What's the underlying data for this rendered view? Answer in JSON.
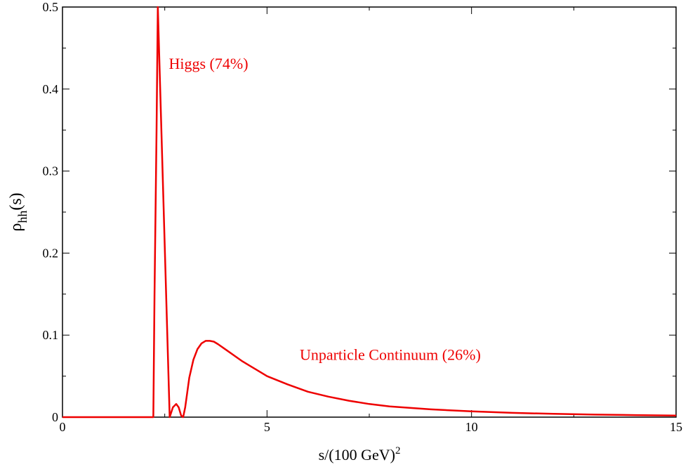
{
  "chart_data": {
    "type": "line",
    "title": "",
    "xlabel": "s/(100 GeV)",
    "xlabel_superscript": "2",
    "ylabel": "ρ",
    "ylabel_subscript": "hh",
    "ylabel_suffix": "(s)",
    "xlim": [
      0,
      15
    ],
    "ylim": [
      0,
      0.5
    ],
    "x_ticks": [
      0,
      5,
      10,
      15
    ],
    "y_ticks": [
      0,
      0.1,
      0.2,
      0.3,
      0.4,
      0.5
    ],
    "x_tick_labels": [
      "0",
      "5",
      "10",
      "15"
    ],
    "y_tick_labels": [
      "0",
      "0.1",
      "0.2",
      "0.3",
      "0.4",
      "0.5"
    ],
    "grid": false,
    "line_color": "#ee0000",
    "annotations": [
      {
        "text": "Higgs (74%)",
        "x": 2.6,
        "y": 0.43
      },
      {
        "text": "Unparticle Continuum (26%)",
        "x": 5.8,
        "y": 0.075
      }
    ],
    "series": [
      {
        "color": "#ee0000",
        "x": [
          0,
          2.22,
          2.25,
          2.3,
          2.33,
          2.62,
          2.7,
          2.78,
          2.84,
          2.9,
          2.95,
          3.0,
          3.05,
          3.1,
          3.2,
          3.3,
          3.4,
          3.5,
          3.6,
          3.7,
          3.8,
          4.0,
          4.2,
          4.4,
          4.6,
          4.8,
          5.0,
          5.5,
          6.0,
          6.5,
          7.0,
          7.5,
          8.0,
          9.0,
          10.0,
          11.0,
          12.0,
          13.0,
          14.0,
          15.0
        ],
        "y": [
          0,
          0,
          0.15,
          0.35,
          0.5,
          0,
          0.012,
          0.016,
          0.012,
          0.002,
          0,
          0.012,
          0.03,
          0.048,
          0.07,
          0.083,
          0.09,
          0.093,
          0.093,
          0.092,
          0.089,
          0.082,
          0.075,
          0.068,
          0.062,
          0.056,
          0.05,
          0.04,
          0.031,
          0.025,
          0.02,
          0.016,
          0.013,
          0.0095,
          0.007,
          0.0052,
          0.004,
          0.0031,
          0.0025,
          0.002
        ]
      }
    ]
  }
}
